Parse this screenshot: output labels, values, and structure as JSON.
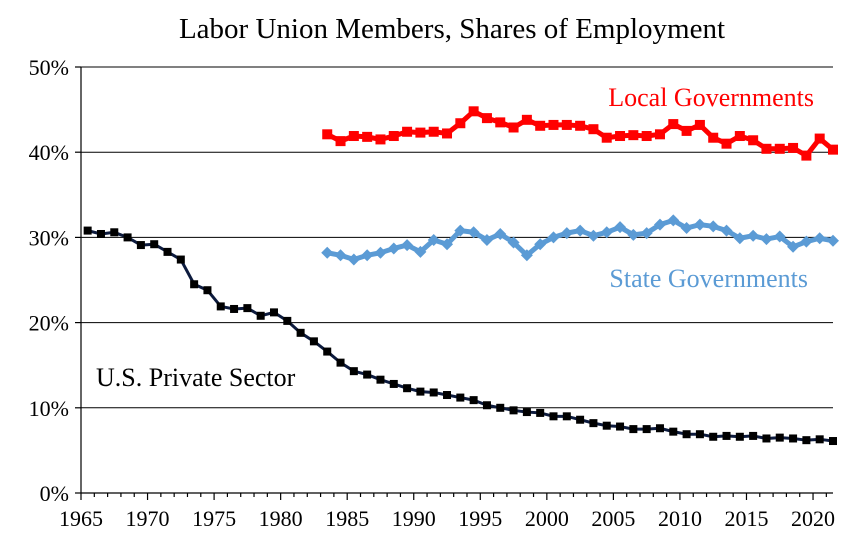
{
  "chart_data": {
    "type": "line",
    "title": "Labor Union Members, Shares of Employment",
    "xlabel": "",
    "ylabel": "",
    "xlim": [
      1965,
      2021.5
    ],
    "ylim": [
      0,
      50
    ],
    "x_ticks": [
      1965,
      1970,
      1975,
      1980,
      1985,
      1990,
      1995,
      2000,
      2005,
      2010,
      2015,
      2020
    ],
    "y_ticks": [
      0,
      10,
      20,
      30,
      40,
      50
    ],
    "y_tick_labels": [
      "0%",
      "10%",
      "20%",
      "30%",
      "40%",
      "50%"
    ],
    "grid": true,
    "series": [
      {
        "name": "Local Governments",
        "label": "Local Governments",
        "color": "#ff0000",
        "marker": "square",
        "x": [
          1983,
          1984,
          1985,
          1986,
          1987,
          1988,
          1989,
          1990,
          1991,
          1992,
          1993,
          1994,
          1995,
          1996,
          1997,
          1998,
          1999,
          2000,
          2001,
          2002,
          2003,
          2004,
          2005,
          2006,
          2007,
          2008,
          2009,
          2010,
          2011,
          2012,
          2013,
          2014,
          2015,
          2016,
          2017,
          2018,
          2019,
          2020,
          2021
        ],
        "values": [
          42.1,
          41.3,
          41.9,
          41.8,
          41.5,
          41.9,
          42.4,
          42.3,
          42.4,
          42.2,
          43.4,
          44.8,
          44.0,
          43.5,
          42.9,
          43.8,
          43.1,
          43.2,
          43.2,
          43.1,
          42.7,
          41.7,
          41.9,
          42.0,
          41.9,
          42.1,
          43.3,
          42.5,
          43.2,
          41.7,
          41.0,
          41.9,
          41.4,
          40.4,
          40.4,
          40.5,
          39.6,
          41.6,
          40.3
        ]
      },
      {
        "name": "State Governments",
        "label": "State Governments",
        "color": "#5b9bd5",
        "marker": "diamond",
        "x": [
          1983,
          1984,
          1985,
          1986,
          1987,
          1988,
          1989,
          1990,
          1991,
          1992,
          1993,
          1994,
          1995,
          1996,
          1997,
          1998,
          1999,
          2000,
          2001,
          2002,
          2003,
          2004,
          2005,
          2006,
          2007,
          2008,
          2009,
          2010,
          2011,
          2012,
          2013,
          2014,
          2015,
          2016,
          2017,
          2018,
          2019,
          2020,
          2021
        ],
        "values": [
          28.2,
          27.9,
          27.4,
          27.9,
          28.2,
          28.7,
          29.1,
          28.3,
          29.7,
          29.2,
          30.8,
          30.6,
          29.7,
          30.4,
          29.4,
          27.9,
          29.2,
          30.0,
          30.5,
          30.8,
          30.2,
          30.6,
          31.2,
          30.3,
          30.5,
          31.5,
          32.0,
          31.1,
          31.5,
          31.3,
          30.8,
          29.9,
          30.2,
          29.8,
          30.1,
          28.9,
          29.5,
          29.9,
          29.6
        ]
      },
      {
        "name": "U.S. Private Sector",
        "label": "U.S. Private Sector",
        "color": "#0d1b3e",
        "marker": "square",
        "x": [
          1965,
          1966,
          1967,
          1968,
          1969,
          1970,
          1971,
          1972,
          1973,
          1974,
          1975,
          1976,
          1977,
          1978,
          1979,
          1980,
          1981,
          1982,
          1983,
          1984,
          1985,
          1986,
          1987,
          1988,
          1989,
          1990,
          1991,
          1992,
          1993,
          1994,
          1995,
          1996,
          1997,
          1998,
          1999,
          2000,
          2001,
          2002,
          2003,
          2004,
          2005,
          2006,
          2007,
          2008,
          2009,
          2010,
          2011,
          2012,
          2013,
          2014,
          2015,
          2016,
          2017,
          2018,
          2019,
          2020,
          2021
        ],
        "values": [
          30.8,
          30.4,
          30.6,
          30.0,
          29.1,
          29.2,
          28.3,
          27.4,
          24.5,
          23.8,
          21.9,
          21.6,
          21.7,
          20.8,
          21.2,
          20.2,
          18.8,
          17.8,
          16.6,
          15.3,
          14.3,
          13.9,
          13.3,
          12.8,
          12.3,
          11.9,
          11.8,
          11.5,
          11.2,
          10.9,
          10.3,
          10.0,
          9.7,
          9.5,
          9.4,
          9.0,
          9.0,
          8.6,
          8.2,
          7.9,
          7.8,
          7.5,
          7.5,
          7.6,
          7.2,
          6.9,
          6.9,
          6.6,
          6.7,
          6.6,
          6.7,
          6.4,
          6.5,
          6.4,
          6.2,
          6.3,
          6.1
        ]
      }
    ]
  }
}
